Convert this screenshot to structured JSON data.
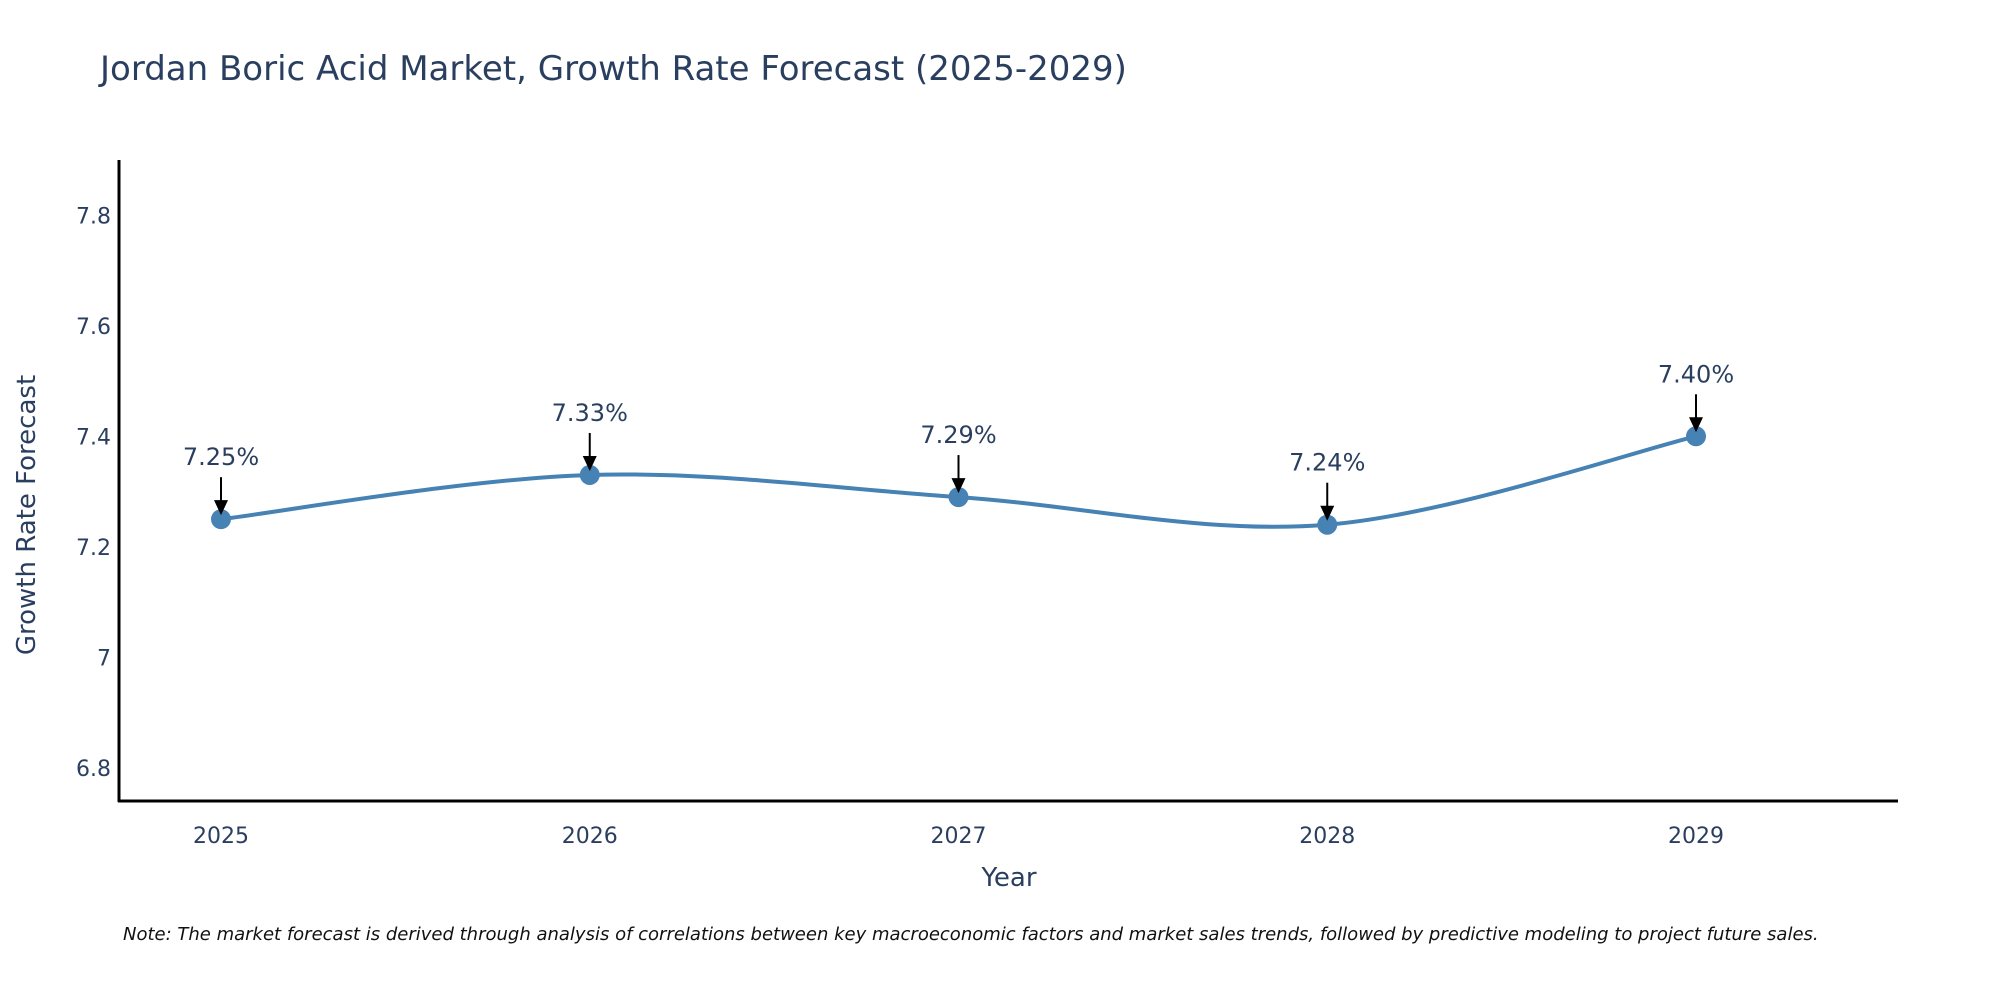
{
  "chart_data": {
    "type": "line",
    "title": "Jordan Boric Acid Market, Growth Rate Forecast (2025-2029)",
    "xlabel": "Year",
    "ylabel": "Growth Rate Forecast",
    "categories": [
      "2025",
      "2026",
      "2027",
      "2028",
      "2029"
    ],
    "series": [
      {
        "name": "Growth Rate Forecast",
        "values": [
          7.25,
          7.33,
          7.29,
          7.24,
          7.4
        ],
        "labels": [
          "7.25%",
          "7.33%",
          "7.29%",
          "7.24%",
          "7.40%"
        ],
        "color": "#4682b4"
      }
    ],
    "ylim": [
      6.74,
      7.9
    ],
    "yticks": [
      6.8,
      7,
      7.2,
      7.4,
      7.6,
      7.8
    ],
    "ytick_labels": [
      "6.8",
      "7",
      "7.2",
      "7.4",
      "7.6",
      "7.8"
    ],
    "grid": false,
    "line_shape": "spline",
    "annotation_arrow_color": "#000000",
    "axis_color": "#000000",
    "note": "Note: The market forecast is derived through analysis of correlations between key macroeconomic factors and market sales trends, followed by predictive modeling to project future sales."
  }
}
